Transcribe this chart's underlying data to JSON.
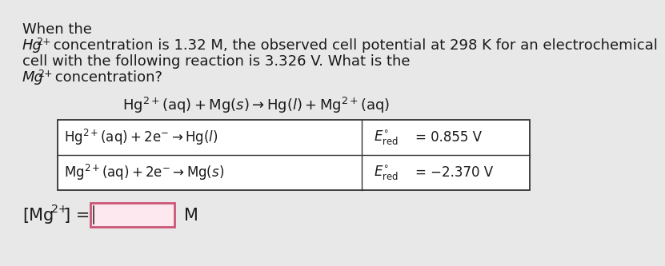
{
  "bg_color": "#e8e8e8",
  "text_color": "#1a1a1a",
  "table_bg": "#ffffff",
  "input_box_border": "#cc5577",
  "input_box_fill": "#fce8ee",
  "font_size_body": 13,
  "font_size_table": 12,
  "font_size_reaction": 13,
  "font_size_answer": 13,
  "line1": "When the",
  "line2_normal": " concentration is 1.32 M, the observed cell potential at 298 K for an electrochemical",
  "line3": "cell with the following reaction is 3.326 V. What is the",
  "line4_normal": " concentration?",
  "reaction_str": "Hg$^{2+}$(aq) + Mg(s) → Hg(ℓ) + Mg$^{2+}$(aq)",
  "table_row1_left": "Hg$^{2+}$(aq) + 2e$^{-}$ → Hg(ℓ)",
  "table_row1_right": "= 0.855 V",
  "table_row2_left": "Mg$^{2+}$(aq) + 2e$^{-}$ → Mg(s)",
  "table_row2_right": "= −2.370 V"
}
